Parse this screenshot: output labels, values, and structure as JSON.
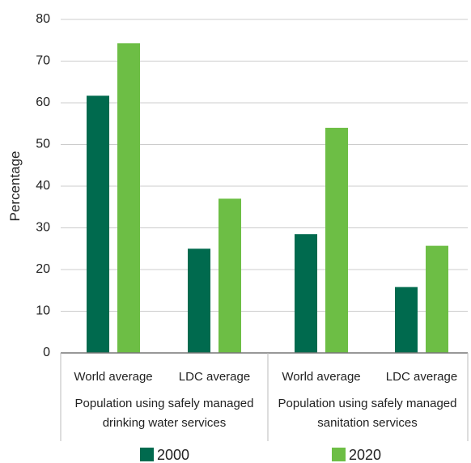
{
  "chart_data": {
    "type": "bar",
    "ylabel": "Percentage",
    "ylim": [
      0,
      80
    ],
    "yticks": [
      "0",
      "10",
      "20",
      "30",
      "40",
      "50",
      "60",
      "70",
      "80"
    ],
    "grid": "horizontal",
    "categories": [
      "World average",
      "LDC average",
      "World average",
      "LDC average"
    ],
    "groups": [
      {
        "label_lines": [
          "Population using safely managed",
          "drinking water services"
        ],
        "categories": [
          0,
          1
        ]
      },
      {
        "label_lines": [
          "Population using safely managed",
          "sanitation services"
        ],
        "categories": [
          2,
          3
        ]
      }
    ],
    "series": [
      {
        "name": "2000",
        "color": "#006a4e",
        "values": [
          61.7,
          25.0,
          28.5,
          15.8
        ]
      },
      {
        "name": "2020",
        "color": "#6dbe45",
        "values": [
          74.3,
          37.0,
          54.0,
          25.7
        ]
      }
    ],
    "legend_position": "bottom"
  }
}
